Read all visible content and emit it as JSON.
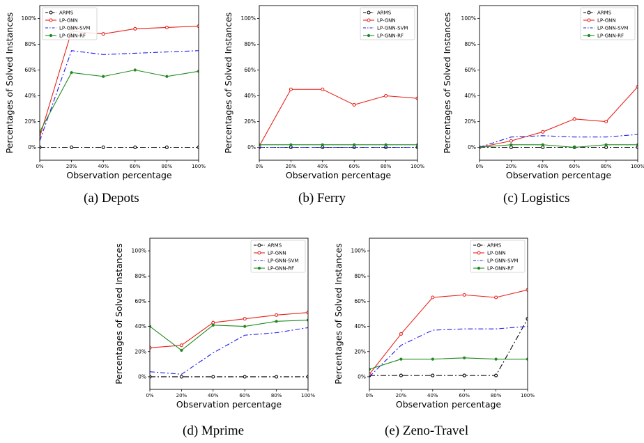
{
  "shared": {
    "ylabel": "Percentages of Solved Instances",
    "xlabel": "Observation percentage",
    "x_ticks": [
      "0%",
      "20%",
      "40%",
      "60%",
      "80%",
      "100%"
    ],
    "y_ticks": [
      "0%",
      "20%",
      "40%",
      "60%",
      "80%",
      "100%"
    ],
    "legend": [
      "ARMS",
      "LP-GNN",
      "LP-GNN-SVM",
      "LP-GNN-RF"
    ],
    "colors": {
      "ARMS": "#000000",
      "LP-GNN": "#e8221b",
      "LP-GNN-SVM": "#1c1cf0",
      "LP-GNN-RF": "#1f8a1f"
    }
  },
  "chart_data": [
    {
      "type": "line",
      "caption": "(a)  Depots",
      "xlabel": "Observation percentage",
      "ylabel": "Percentages of Solved Instances",
      "x": [
        0,
        20,
        40,
        60,
        80,
        100
      ],
      "xlim": [
        0,
        100
      ],
      "ylim": [
        -10,
        110
      ],
      "legend_position": "top-left",
      "series": [
        {
          "name": "ARMS",
          "values": [
            0,
            0,
            0,
            0,
            0,
            0
          ]
        },
        {
          "name": "LP-GNN",
          "values": [
            8,
            90,
            88,
            92,
            93,
            94
          ]
        },
        {
          "name": "LP-GNN-SVM",
          "values": [
            5,
            75,
            72,
            73,
            74,
            75
          ]
        },
        {
          "name": "LP-GNN-RF",
          "values": [
            12,
            58,
            55,
            60,
            55,
            59
          ]
        }
      ]
    },
    {
      "type": "line",
      "caption": "(b)  Ferry",
      "xlabel": "Observation percentage",
      "ylabel": "Percentages of Solved Instances",
      "x": [
        0,
        20,
        40,
        60,
        80,
        100
      ],
      "xlim": [
        0,
        100
      ],
      "ylim": [
        -10,
        110
      ],
      "legend_position": "top-right",
      "series": [
        {
          "name": "ARMS",
          "values": [
            0,
            0,
            0,
            0,
            0,
            0
          ]
        },
        {
          "name": "LP-GNN",
          "values": [
            1,
            45,
            45,
            33,
            40,
            38
          ]
        },
        {
          "name": "LP-GNN-SVM",
          "values": [
            0,
            0,
            0,
            0,
            0,
            0
          ]
        },
        {
          "name": "LP-GNN-RF",
          "values": [
            2,
            2,
            2,
            2,
            2,
            2
          ]
        }
      ]
    },
    {
      "type": "line",
      "caption": "(c)  Logistics",
      "xlabel": "Observation percentage",
      "ylabel": "Percentages of Solved Instances",
      "x": [
        0,
        20,
        40,
        60,
        80,
        100
      ],
      "xlim": [
        0,
        100
      ],
      "ylim": [
        -10,
        110
      ],
      "legend_position": "top-right",
      "series": [
        {
          "name": "ARMS",
          "values": [
            0,
            0,
            0,
            0,
            0,
            0
          ]
        },
        {
          "name": "LP-GNN",
          "values": [
            0,
            5,
            12,
            22,
            20,
            47
          ]
        },
        {
          "name": "LP-GNN-SVM",
          "values": [
            0,
            8,
            9,
            8,
            8,
            10
          ]
        },
        {
          "name": "LP-GNN-RF",
          "values": [
            0,
            2,
            2,
            0,
            2,
            2
          ]
        }
      ]
    },
    {
      "type": "line",
      "caption": "(d)  Mprime",
      "xlabel": "Observation percentage",
      "ylabel": "Percentages of Solved Instances",
      "x": [
        0,
        20,
        40,
        60,
        80,
        100
      ],
      "xlim": [
        0,
        100
      ],
      "ylim": [
        -10,
        110
      ],
      "legend_position": "top-right",
      "series": [
        {
          "name": "ARMS",
          "values": [
            0,
            0,
            0,
            0,
            0,
            0
          ]
        },
        {
          "name": "LP-GNN",
          "values": [
            23,
            25,
            43,
            46,
            49,
            51
          ]
        },
        {
          "name": "LP-GNN-SVM",
          "values": [
            4,
            2,
            19,
            33,
            35,
            39
          ]
        },
        {
          "name": "LP-GNN-RF",
          "values": [
            40,
            21,
            41,
            40,
            44,
            45
          ]
        }
      ]
    },
    {
      "type": "line",
      "caption": "(e)  Zeno-Travel",
      "xlabel": "Observation percentage",
      "ylabel": "Percentages of Solved Instances",
      "x": [
        0,
        20,
        40,
        60,
        80,
        100
      ],
      "xlim": [
        0,
        100
      ],
      "ylim": [
        -10,
        110
      ],
      "legend_position": "top-right",
      "series": [
        {
          "name": "ARMS",
          "values": [
            1,
            1,
            1,
            1,
            1,
            46
          ]
        },
        {
          "name": "LP-GNN",
          "values": [
            2,
            34,
            63,
            65,
            63,
            69
          ]
        },
        {
          "name": "LP-GNN-SVM",
          "values": [
            0,
            25,
            37,
            38,
            38,
            40
          ]
        },
        {
          "name": "LP-GNN-RF",
          "values": [
            6,
            14,
            14,
            15,
            14,
            14
          ]
        }
      ]
    }
  ]
}
